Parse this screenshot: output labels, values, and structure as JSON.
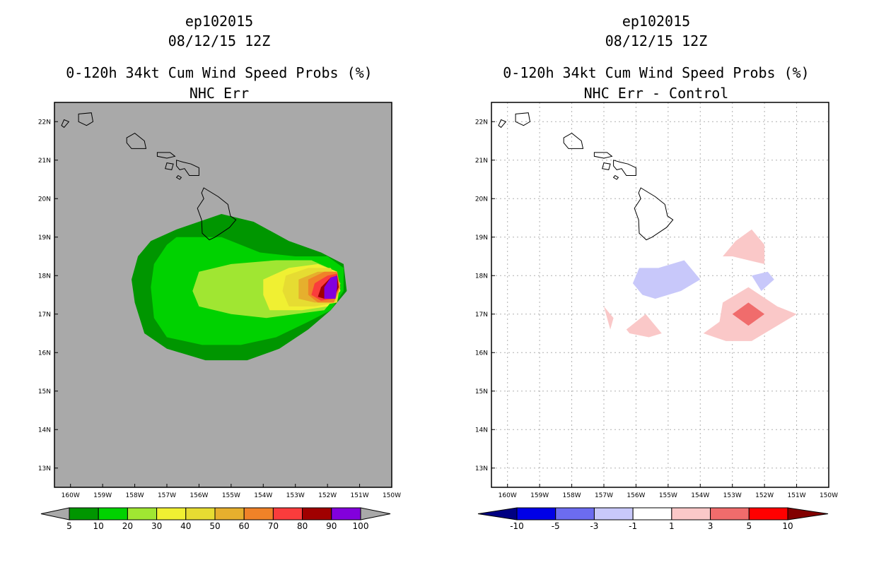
{
  "chart_data": [
    {
      "type": "contour-map",
      "title_lines": [
        "ep102015",
        "08/12/15 12Z",
        "0-120h 34kt Cum Wind Speed Probs (%)",
        "NHC Err"
      ],
      "x_ticks": [
        "160W",
        "159W",
        "158W",
        "157W",
        "156W",
        "155W",
        "154W",
        "153W",
        "152W",
        "151W",
        "150W"
      ],
      "y_ticks": [
        "22N",
        "21N",
        "20N",
        "19N",
        "18N",
        "17N",
        "16N",
        "15N",
        "14N",
        "13N"
      ],
      "xlim": [
        -160.5,
        -150
      ],
      "ylim": [
        12.5,
        22.5
      ],
      "background": "#a9a9a9",
      "colorbar": {
        "labels": [
          "5",
          "10",
          "20",
          "30",
          "40",
          "50",
          "60",
          "70",
          "80",
          "90",
          "100"
        ],
        "colors": [
          "#009600",
          "#00d200",
          "#a0e632",
          "#f0f032",
          "#e6dc32",
          "#e6af2d",
          "#f08228",
          "#fa3c3c",
          "#a00000",
          "#8200dc"
        ],
        "below_color": "#a9a9a9",
        "above_color": "#a9a9a9"
      },
      "contours": [
        {
          "level": 5,
          "color": "#009600",
          "polygon": [
            [
              -156.7,
              19.2
            ],
            [
              -155.3,
              19.6
            ],
            [
              -154.3,
              19.4
            ],
            [
              -153.2,
              18.9
            ],
            [
              -152.2,
              18.6
            ],
            [
              -151.5,
              18.3
            ],
            [
              -151.4,
              17.6
            ],
            [
              -151.9,
              17.1
            ],
            [
              -152.6,
              16.6
            ],
            [
              -153.5,
              16.1
            ],
            [
              -154.5,
              15.8
            ],
            [
              -155.8,
              15.8
            ],
            [
              -157.0,
              16.1
            ],
            [
              -157.7,
              16.5
            ],
            [
              -158.0,
              17.3
            ],
            [
              -158.1,
              17.9
            ],
            [
              -157.9,
              18.5
            ],
            [
              -157.5,
              18.9
            ]
          ]
        },
        {
          "level": 10,
          "color": "#00d200",
          "polygon": [
            [
              -156.7,
              19.0
            ],
            [
              -155.3,
              19.0
            ],
            [
              -154.1,
              18.6
            ],
            [
              -153.0,
              18.5
            ],
            [
              -152.0,
              18.5
            ],
            [
              -151.5,
              18.2
            ],
            [
              -151.5,
              17.6
            ],
            [
              -151.9,
              17.1
            ],
            [
              -152.6,
              16.8
            ],
            [
              -153.6,
              16.4
            ],
            [
              -154.7,
              16.2
            ],
            [
              -155.9,
              16.2
            ],
            [
              -157.0,
              16.4
            ],
            [
              -157.4,
              16.9
            ],
            [
              -157.5,
              17.7
            ],
            [
              -157.4,
              18.3
            ],
            [
              -157.0,
              18.8
            ]
          ]
        },
        {
          "level": 20,
          "color": "#a0e632",
          "polygon": [
            [
              -156.0,
              18.1
            ],
            [
              -155.0,
              18.3
            ],
            [
              -153.6,
              18.4
            ],
            [
              -152.5,
              18.4
            ],
            [
              -151.7,
              18.1
            ],
            [
              -151.6,
              17.6
            ],
            [
              -152.1,
              17.1
            ],
            [
              -153.0,
              17.0
            ],
            [
              -153.9,
              16.9
            ],
            [
              -155.0,
              17.0
            ],
            [
              -156.0,
              17.2
            ],
            [
              -156.2,
              17.6
            ]
          ]
        },
        {
          "level": 30,
          "color": "#f0f032",
          "polygon": [
            [
              -154.0,
              17.9
            ],
            [
              -153.2,
              18.2
            ],
            [
              -152.3,
              18.3
            ],
            [
              -151.7,
              18.1
            ],
            [
              -151.6,
              17.6
            ],
            [
              -152.0,
              17.2
            ],
            [
              -152.8,
              17.1
            ],
            [
              -153.8,
              17.1
            ],
            [
              -154.0,
              17.5
            ]
          ]
        },
        {
          "level": 40,
          "color": "#e6dc32",
          "polygon": [
            [
              -153.3,
              18.0
            ],
            [
              -152.6,
              18.2
            ],
            [
              -151.9,
              18.2
            ],
            [
              -151.6,
              17.8
            ],
            [
              -151.7,
              17.3
            ],
            [
              -152.4,
              17.2
            ],
            [
              -153.2,
              17.2
            ],
            [
              -153.4,
              17.6
            ]
          ]
        },
        {
          "level": 50,
          "color": "#e6af2d",
          "polygon": [
            [
              -152.9,
              17.9
            ],
            [
              -152.3,
              18.1
            ],
            [
              -151.8,
              18.1
            ],
            [
              -151.6,
              17.7
            ],
            [
              -151.8,
              17.3
            ],
            [
              -152.4,
              17.3
            ],
            [
              -152.9,
              17.4
            ]
          ]
        },
        {
          "level": 60,
          "color": "#f08228",
          "polygon": [
            [
              -152.6,
              17.9
            ],
            [
              -152.1,
              18.1
            ],
            [
              -151.7,
              18.1
            ],
            [
              -151.6,
              17.7
            ],
            [
              -151.8,
              17.3
            ],
            [
              -152.3,
              17.3
            ],
            [
              -152.6,
              17.5
            ]
          ]
        },
        {
          "level": 70,
          "color": "#fa3c3c",
          "polygon": [
            [
              -152.4,
              17.8
            ],
            [
              -152.0,
              18.0
            ],
            [
              -151.7,
              18.05
            ],
            [
              -151.65,
              17.7
            ],
            [
              -151.8,
              17.4
            ],
            [
              -152.2,
              17.35
            ],
            [
              -152.5,
              17.5
            ]
          ]
        },
        {
          "level": 80,
          "color": "#a00000",
          "polygon": [
            [
              -152.2,
              17.7
            ],
            [
              -151.9,
              17.95
            ],
            [
              -151.7,
              18.0
            ],
            [
              -151.65,
              17.7
            ],
            [
              -151.8,
              17.4
            ],
            [
              -152.1,
              17.4
            ],
            [
              -152.3,
              17.45
            ]
          ]
        },
        {
          "level": 90,
          "color": "#8200dc",
          "polygon": [
            [
              -152.1,
              17.7
            ],
            [
              -151.9,
              17.95
            ],
            [
              -151.7,
              18.0
            ],
            [
              -151.7,
              17.7
            ],
            [
              -151.75,
              17.4
            ],
            [
              -152.1,
              17.4
            ]
          ]
        }
      ]
    },
    {
      "type": "contour-map",
      "title_lines": [
        "ep102015",
        "08/12/15 12Z",
        "0-120h 34kt Cum Wind Speed Probs (%)",
        "NHC Err - Control"
      ],
      "x_ticks": [
        "160W",
        "159W",
        "158W",
        "157W",
        "156W",
        "155W",
        "154W",
        "153W",
        "152W",
        "151W",
        "150W"
      ],
      "y_ticks": [
        "22N",
        "21N",
        "20N",
        "19N",
        "18N",
        "17N",
        "16N",
        "15N",
        "14N",
        "13N"
      ],
      "xlim": [
        -160.5,
        -150
      ],
      "ylim": [
        12.5,
        22.5
      ],
      "background": "#ffffff",
      "grid": true,
      "colorbar": {
        "labels": [
          "-10",
          "-5",
          "-3",
          "-1",
          "1",
          "3",
          "5",
          "10"
        ],
        "colors": [
          "#0000e6",
          "#6c6cf0",
          "#c8c8fa",
          "#ffffff",
          "#fac8c8",
          "#f06c6c",
          "#ff0000"
        ],
        "below_color": "#000082",
        "above_color": "#820000"
      },
      "contours": [
        {
          "level": -3,
          "color": "#c8c8fa",
          "polygon": [
            [
              -155.9,
              18.2
            ],
            [
              -155.3,
              18.2
            ],
            [
              -154.5,
              18.4
            ],
            [
              -154.0,
              17.9
            ],
            [
              -154.6,
              17.6
            ],
            [
              -155.4,
              17.4
            ],
            [
              -155.8,
              17.5
            ],
            [
              -156.1,
              17.8
            ]
          ]
        },
        {
          "level": -3,
          "color": "#c8c8fa",
          "polygon": [
            [
              -152.4,
              18.0
            ],
            [
              -151.9,
              18.1
            ],
            [
              -151.7,
              17.9
            ],
            [
              -152.1,
              17.6
            ]
          ]
        },
        {
          "level": 3,
          "color": "#fac8c8",
          "polygon": [
            [
              -152.9,
              18.9
            ],
            [
              -152.4,
              19.2
            ],
            [
              -152.0,
              18.8
            ],
            [
              -152.0,
              18.3
            ],
            [
              -152.5,
              18.4
            ],
            [
              -153.0,
              18.5
            ],
            [
              -153.3,
              18.5
            ]
          ]
        },
        {
          "level": 3,
          "color": "#fac8c8",
          "polygon": [
            [
              -153.3,
              17.3
            ],
            [
              -152.5,
              17.7
            ],
            [
              -151.6,
              17.2
            ],
            [
              -151.0,
              17.0
            ],
            [
              -151.6,
              16.7
            ],
            [
              -152.4,
              16.3
            ],
            [
              -153.2,
              16.3
            ],
            [
              -153.9,
              16.5
            ],
            [
              -153.4,
              16.8
            ]
          ]
        },
        {
          "level": 3,
          "color": "#fac8c8",
          "polygon": [
            [
              -156.3,
              16.6
            ],
            [
              -155.7,
              17.0
            ],
            [
              -155.2,
              16.5
            ],
            [
              -155.6,
              16.4
            ],
            [
              -156.2,
              16.5
            ]
          ]
        },
        {
          "level": 3,
          "color": "#fac8c8",
          "polygon": [
            [
              -157.0,
              17.2
            ],
            [
              -156.7,
              16.9
            ],
            [
              -156.8,
              16.6
            ],
            [
              -156.9,
              16.9
            ]
          ]
        },
        {
          "level": 5,
          "color": "#f06c6c",
          "polygon": [
            [
              -153.0,
              17.0
            ],
            [
              -152.5,
              17.3
            ],
            [
              -152.0,
              17.0
            ],
            [
              -152.5,
              16.7
            ]
          ]
        }
      ]
    }
  ],
  "islands": [
    [
      [
        -155.85,
        20.28
      ],
      [
        -155.4,
        20.05
      ],
      [
        -155.1,
        19.85
      ],
      [
        -155.02,
        19.55
      ],
      [
        -154.85,
        19.45
      ],
      [
        -155.05,
        19.25
      ],
      [
        -155.5,
        19.0
      ],
      [
        -155.68,
        18.93
      ],
      [
        -155.9,
        19.1
      ],
      [
        -155.92,
        19.45
      ],
      [
        -156.05,
        19.75
      ],
      [
        -155.85,
        20.0
      ],
      [
        -155.92,
        20.15
      ]
    ],
    [
      [
        -156.7,
        21.0
      ],
      [
        -156.5,
        20.95
      ],
      [
        -156.25,
        20.9
      ],
      [
        -156.0,
        20.8
      ],
      [
        -156.0,
        20.6
      ],
      [
        -156.3,
        20.6
      ],
      [
        -156.45,
        20.78
      ],
      [
        -156.6,
        20.75
      ],
      [
        -156.7,
        20.85
      ]
    ],
    [
      [
        -157.3,
        21.2
      ],
      [
        -156.9,
        21.2
      ],
      [
        -156.75,
        21.1
      ],
      [
        -157.0,
        21.05
      ],
      [
        -157.3,
        21.1
      ]
    ],
    [
      [
        -157.0,
        20.93
      ],
      [
        -156.8,
        20.9
      ],
      [
        -156.85,
        20.75
      ],
      [
        -157.05,
        20.78
      ]
    ],
    [
      [
        -156.65,
        20.6
      ],
      [
        -156.55,
        20.55
      ],
      [
        -156.6,
        20.5
      ],
      [
        -156.7,
        20.55
      ]
    ],
    [
      [
        -158.25,
        21.58
      ],
      [
        -158.0,
        21.7
      ],
      [
        -157.7,
        21.5
      ],
      [
        -157.65,
        21.3
      ],
      [
        -158.1,
        21.3
      ],
      [
        -158.25,
        21.45
      ]
    ],
    [
      [
        -159.75,
        22.2
      ],
      [
        -159.35,
        22.23
      ],
      [
        -159.3,
        22.0
      ],
      [
        -159.5,
        21.9
      ],
      [
        -159.75,
        22.0
      ]
    ],
    [
      [
        -160.2,
        22.05
      ],
      [
        -160.05,
        22.0
      ],
      [
        -160.2,
        21.85
      ],
      [
        -160.28,
        21.9
      ]
    ]
  ]
}
